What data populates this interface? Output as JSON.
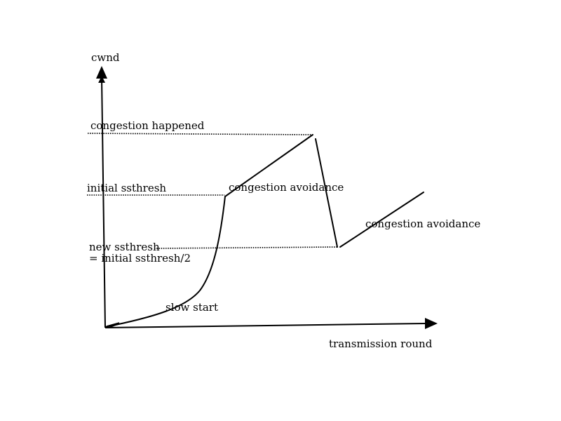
{
  "colors": {
    "background": "#ffffff",
    "ink": "#000000"
  },
  "axes": {
    "y_label": "cwnd",
    "x_label": "transmission round"
  },
  "levels": {
    "congestion_happened": "congestion happened",
    "initial_ssthresh": "initial ssthresh",
    "new_ssthresh_line1": "new ssthresh",
    "new_ssthresh_line2": "= initial ssthresh/2"
  },
  "phases": {
    "slow_start": "slow start",
    "congestion_avoidance_1": "congestion avoidance",
    "congestion_avoidance_2": "congestion avoidance"
  }
}
